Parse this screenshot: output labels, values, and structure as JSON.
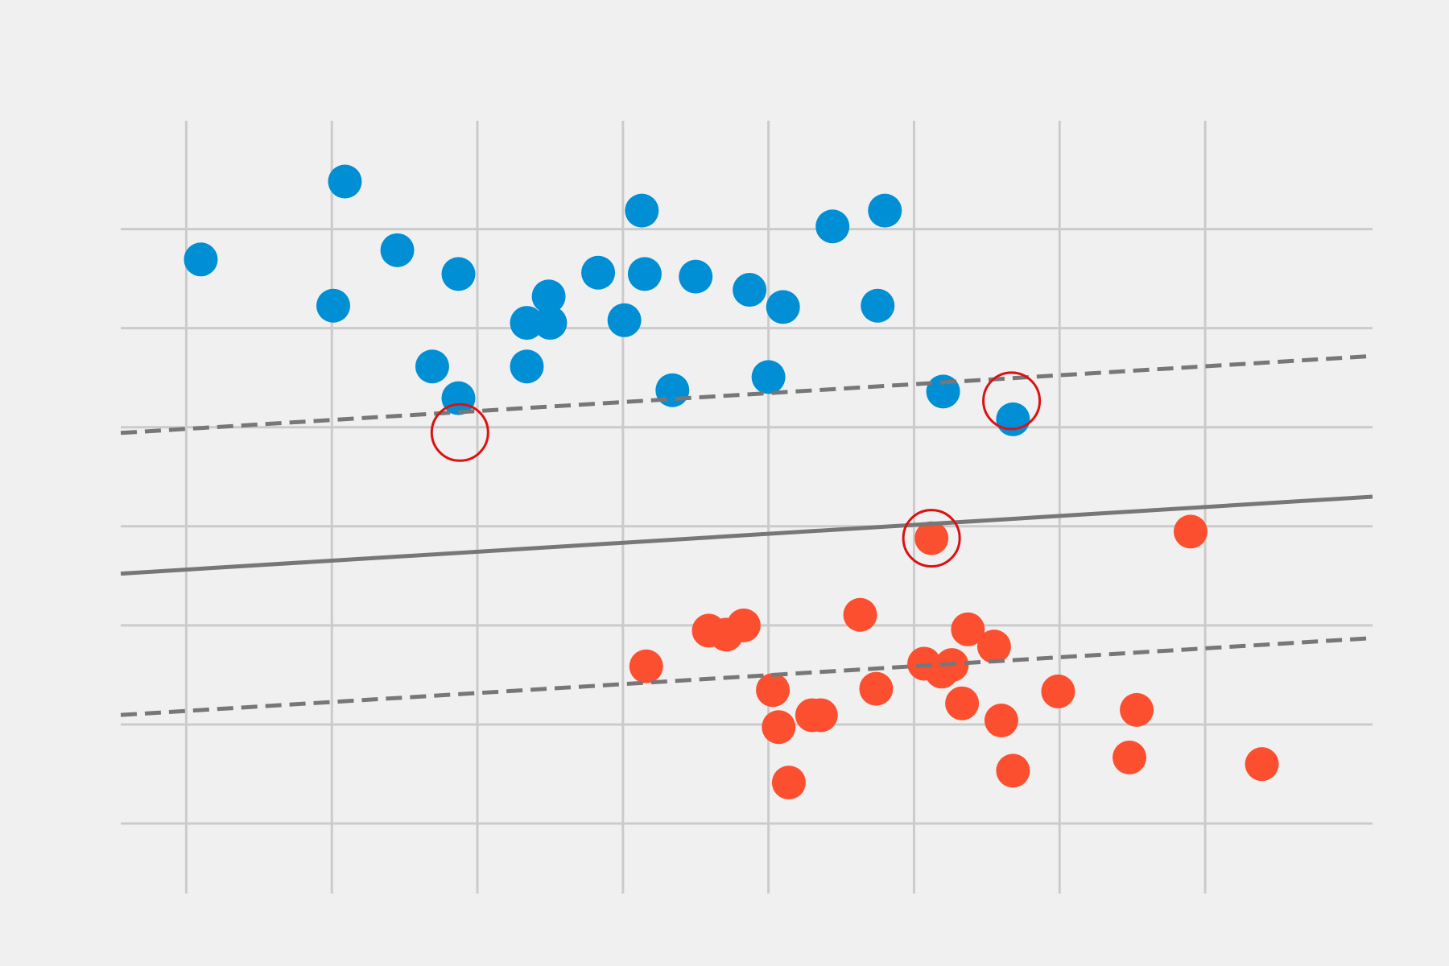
{
  "chart_data": {
    "type": "scatter",
    "title": "",
    "xlabel": "",
    "ylabel": "",
    "xlim": [
      -1.45,
      7.15
    ],
    "ylim": [
      -2.03,
      3.82
    ],
    "x_gridlines": [
      -1,
      0,
      1,
      2,
      3,
      4,
      5,
      6
    ],
    "y_gridlines": [
      -1.5,
      -0.75,
      0,
      0.75,
      1.5,
      2.25,
      3.0
    ],
    "grid": true,
    "background_color": "#f0f0f0",
    "grid_color": "#cbcbcb",
    "series": [
      {
        "color": "#008fd5",
        "points": [
          [
            -0.9,
            2.77
          ],
          [
            0.09,
            3.36
          ],
          [
            0.01,
            2.42
          ],
          [
            0.45,
            2.84
          ],
          [
            0.87,
            2.66
          ],
          [
            0.69,
            1.96
          ],
          [
            0.87,
            1.72
          ],
          [
            1.34,
            2.29
          ],
          [
            1.34,
            1.96
          ],
          [
            1.49,
            2.49
          ],
          [
            1.5,
            2.29
          ],
          [
            1.83,
            2.67
          ],
          [
            2.01,
            2.31
          ],
          [
            2.13,
            3.14
          ],
          [
            2.15,
            2.66
          ],
          [
            2.34,
            1.78
          ],
          [
            2.5,
            2.64
          ],
          [
            2.87,
            2.54
          ],
          [
            3.0,
            1.88
          ],
          [
            3.1,
            2.41
          ],
          [
            3.44,
            3.02
          ],
          [
            3.75,
            2.42
          ],
          [
            3.8,
            3.14
          ],
          [
            4.2,
            1.77
          ],
          [
            4.68,
            1.56
          ]
        ]
      },
      {
        "color": "#fc4f30",
        "points": [
          [
            2.16,
            -0.31
          ],
          [
            2.59,
            -0.04
          ],
          [
            2.71,
            -0.07
          ],
          [
            2.83,
            0.0
          ],
          [
            3.03,
            -0.49
          ],
          [
            3.07,
            -0.77
          ],
          [
            3.3,
            -0.68
          ],
          [
            3.36,
            -0.68
          ],
          [
            3.63,
            0.08
          ],
          [
            3.74,
            -0.48
          ],
          [
            4.07,
            -0.29
          ],
          [
            4.12,
            0.66
          ],
          [
            4.19,
            -0.35
          ],
          [
            4.26,
            -0.3
          ],
          [
            4.33,
            -0.59
          ],
          [
            4.37,
            -0.03
          ],
          [
            4.55,
            -0.16
          ],
          [
            4.6,
            -0.72
          ],
          [
            4.68,
            -1.1
          ],
          [
            4.99,
            -0.5
          ],
          [
            5.48,
            -1.0
          ],
          [
            5.53,
            -0.64
          ],
          [
            5.9,
            0.71
          ],
          [
            6.39,
            -1.05
          ],
          [
            3.14,
            -1.19
          ]
        ]
      }
    ],
    "decision_boundary": {
      "slope": 0.0677,
      "intercept": 0.49
    },
    "margins": [
      {
        "slope": 0.0677,
        "intercept": 1.555
      },
      {
        "slope": 0.0677,
        "intercept": -0.58
      }
    ],
    "line_color": "#777777",
    "support_vectors": [
      [
        0.88,
        1.46
      ],
      [
        4.67,
        1.7
      ],
      [
        4.12,
        0.66
      ]
    ],
    "support_vector_ring_color": "#dd1111"
  }
}
